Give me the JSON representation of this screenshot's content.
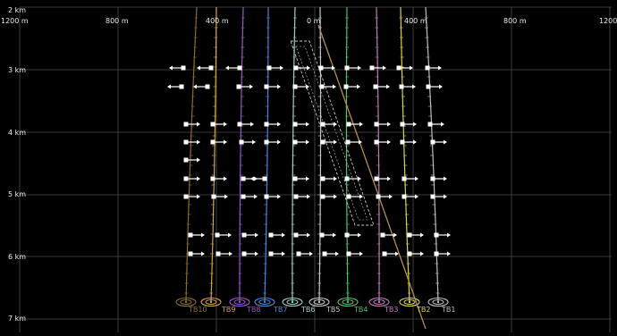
{
  "view": {
    "horizontal_labels": [
      "1200 m",
      "800 m",
      "400 m",
      "0 m",
      "400 m",
      "800 m",
      "1200"
    ],
    "depth_labels": [
      "2 km",
      "3 km",
      "4 km",
      "5 km",
      "6 km",
      "7 km"
    ]
  },
  "wells": [
    {
      "name": "TB10",
      "color": "#8a6c2a"
    },
    {
      "name": "TB9",
      "color": "#d4a04a"
    },
    {
      "name": "TB8",
      "color": "#9a55c8"
    },
    {
      "name": "TB7",
      "color": "#4a86d6"
    },
    {
      "name": "TB6",
      "color": "#9ad0c8"
    },
    {
      "name": "TB5",
      "color": "#c8c8c8"
    },
    {
      "name": "TB4",
      "color": "#4fc06a"
    },
    {
      "name": "TB3",
      "color": "#c07ab8"
    },
    {
      "name": "TB2",
      "color": "#d4d44a"
    },
    {
      "name": "TB1",
      "color": "#bdbdbd"
    }
  ],
  "colors": {
    "background": "#000000",
    "grid": "#4a4a4a",
    "fault_line": "#b88a4a",
    "zone_outline": "#c8c8c8",
    "marker": "#ffffff"
  }
}
